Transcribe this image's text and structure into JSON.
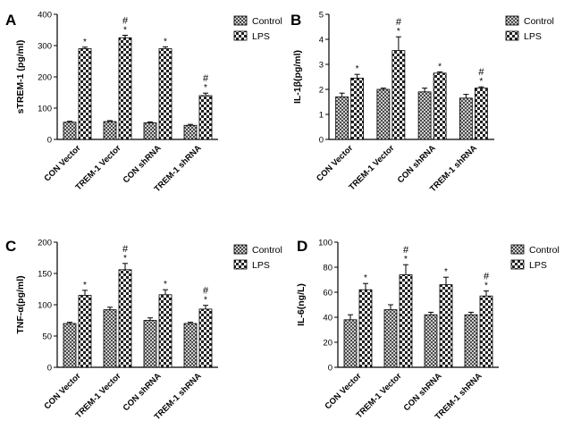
{
  "figure": {
    "legend_labels": [
      "Control",
      "LPS"
    ],
    "categories": [
      "CON Vector",
      "TREM-1 Vector",
      "CON shRNA",
      "TREM-1 shRNA"
    ]
  },
  "chart_data": [
    {
      "type": "bar",
      "panel_label": "A",
      "title": "",
      "xlabel": "",
      "ylabel": "sTREM-1 (pg/ml)",
      "ylim": [
        0,
        400
      ],
      "yticks": [
        0,
        100,
        200,
        300,
        400
      ],
      "categories": [
        "CON Vector",
        "TREM-1 Vector",
        "CON shRNA",
        "TREM-1 shRNA"
      ],
      "legend": "top-right",
      "series": [
        {
          "name": "Control",
          "values": [
            55,
            57,
            53,
            45
          ],
          "errors": [
            3,
            3,
            3,
            3
          ],
          "marks": [
            "",
            "",
            "",
            ""
          ]
        },
        {
          "name": "LPS",
          "values": [
            290,
            325,
            290,
            140
          ],
          "errors": [
            5,
            8,
            6,
            8
          ],
          "marks": [
            "*",
            "#\n*",
            "*",
            "#\n*"
          ]
        }
      ]
    },
    {
      "type": "bar",
      "panel_label": "B",
      "title": "",
      "xlabel": "",
      "ylabel": "IL-1β(pg/ml)",
      "ylim": [
        0,
        5
      ],
      "yticks": [
        0,
        1,
        2,
        3,
        4,
        5
      ],
      "categories": [
        "CON Vector",
        "TREM-1 Vector",
        "CON shRNA",
        "TREM-1 shRNA"
      ],
      "legend": "top-right",
      "series": [
        {
          "name": "Control",
          "values": [
            1.7,
            2.0,
            1.9,
            1.65
          ],
          "errors": [
            0.15,
            0.05,
            0.15,
            0.15
          ],
          "marks": [
            "",
            "",
            "",
            ""
          ]
        },
        {
          "name": "LPS",
          "values": [
            2.45,
            3.55,
            2.65,
            2.05
          ],
          "errors": [
            0.15,
            0.55,
            0.05,
            0.05
          ],
          "marks": [
            "*",
            "#\n*",
            "*",
            "#\n*"
          ]
        }
      ]
    },
    {
      "type": "bar",
      "panel_label": "C",
      "title": "",
      "xlabel": "",
      "ylabel": "TNF-α(pg/ml)",
      "ylim": [
        0,
        200
      ],
      "yticks": [
        0,
        50,
        100,
        150,
        200
      ],
      "categories": [
        "CON Vector",
        "TREM-1 Vector",
        "CON shRNA",
        "TREM-1 shRNA"
      ],
      "legend": "top-right",
      "series": [
        {
          "name": "Control",
          "values": [
            70,
            92,
            75,
            70
          ],
          "errors": [
            2,
            4,
            4,
            2
          ],
          "marks": [
            "",
            "",
            "",
            ""
          ]
        },
        {
          "name": "LPS",
          "values": [
            115,
            156,
            116,
            93
          ],
          "errors": [
            8,
            10,
            8,
            6
          ],
          "marks": [
            "*",
            "#\n*",
            "*",
            "#\n*"
          ]
        }
      ]
    },
    {
      "type": "bar",
      "panel_label": "D",
      "title": "",
      "xlabel": "",
      "ylabel": "IL-6(ng/L)",
      "ylim": [
        0,
        100
      ],
      "yticks": [
        0,
        20,
        40,
        60,
        80,
        100
      ],
      "categories": [
        "CON Vector",
        "TREM-1 Vector",
        "CON shRNA",
        "TREM-1 shRNA"
      ],
      "legend": "top-right",
      "series": [
        {
          "name": "Control",
          "values": [
            38,
            46,
            42,
            42
          ],
          "errors": [
            4,
            4,
            2,
            2
          ],
          "marks": [
            "",
            "",
            "",
            ""
          ]
        },
        {
          "name": "LPS",
          "values": [
            62,
            74,
            66,
            57
          ],
          "errors": [
            5,
            8,
            6,
            4
          ],
          "marks": [
            "*",
            "#\n*",
            "*",
            "#\n*"
          ]
        }
      ]
    }
  ]
}
